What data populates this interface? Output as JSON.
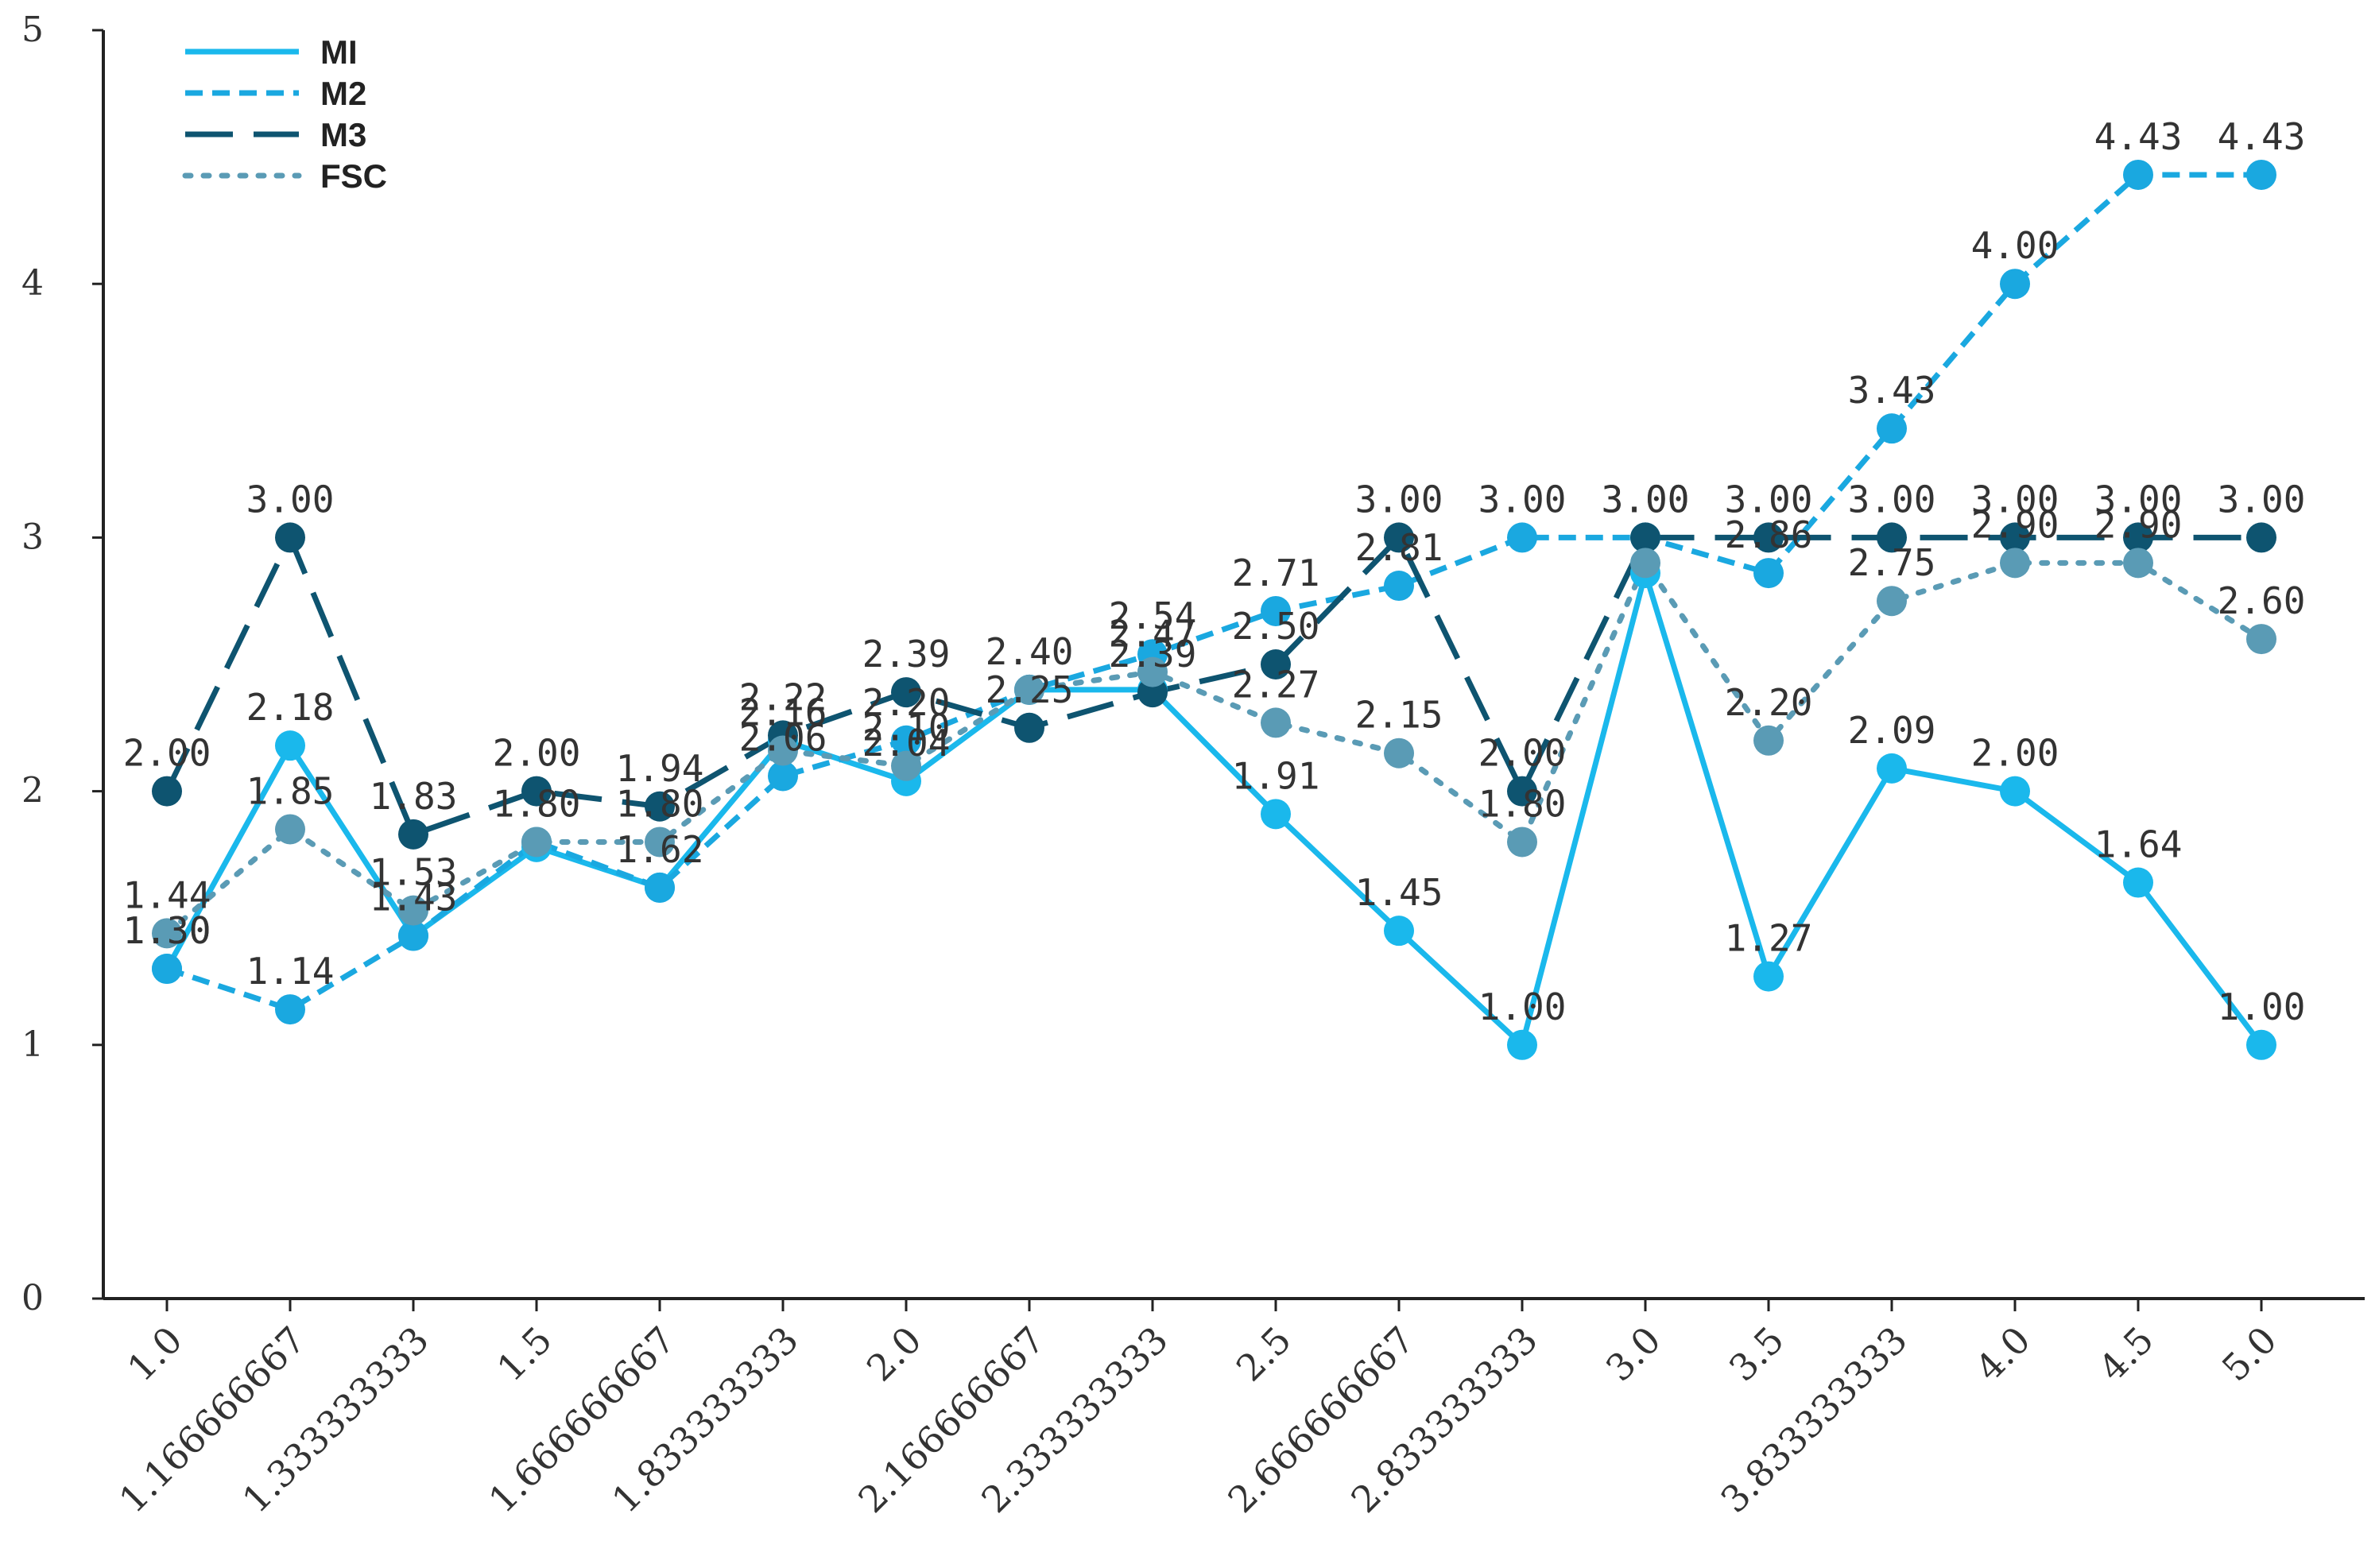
{
  "chart_data": {
    "type": "line",
    "title": "",
    "xlabel": "",
    "ylabel": "",
    "ylim": [
      0,
      5
    ],
    "yticks": [
      "0",
      "1",
      "2",
      "3",
      "4",
      "5"
    ],
    "categories": [
      "1.0",
      "1.166666667",
      "1.333333333",
      "1.5",
      "1.666666667",
      "1.833333333",
      "2.0",
      "2.166666667",
      "2.333333333",
      "2.5",
      "2.666666667",
      "2.833333333",
      "3.0",
      "3.5",
      "3.833333333",
      "4.0",
      "4.5",
      "5.0"
    ],
    "legend_position": "top-left",
    "series": [
      {
        "name": "MI",
        "color": "#1ab8ec",
        "dash": "solid",
        "values": [
          1.3,
          2.18,
          1.43,
          1.78,
          1.62,
          2.2,
          2.04,
          2.4,
          2.4,
          1.91,
          1.45,
          1.0,
          2.86,
          1.27,
          2.09,
          2.0,
          1.64,
          1.0
        ],
        "labels": [
          "1.30",
          "2.18",
          "1.43",
          "",
          "1.62",
          "",
          "2.04",
          "2.40",
          "",
          "1.91",
          "1.45",
          "1.00",
          "",
          "1.27",
          "2.09",
          "2.00",
          "1.64",
          "1.00"
        ]
      },
      {
        "name": "M2",
        "color": "#1aa8e0",
        "dash": "dash",
        "values": [
          1.3,
          1.14,
          1.43,
          1.8,
          1.62,
          2.06,
          2.2,
          2.4,
          2.54,
          2.71,
          2.81,
          3.0,
          3.0,
          2.86,
          3.43,
          4.0,
          4.43,
          4.43
        ],
        "labels": [
          "1.30",
          "1.14",
          "",
          "1.80",
          "",
          "2.06",
          "2.20",
          "",
          "2.54",
          "2.71",
          "2.81",
          "3.00",
          "3.00",
          "2.86",
          "3.43",
          "4.00",
          "4.43",
          "4.43"
        ]
      },
      {
        "name": "M3",
        "color": "#0e5470",
        "dash": "longdash",
        "values": [
          2.0,
          3.0,
          1.83,
          2.0,
          1.94,
          2.22,
          2.39,
          2.25,
          2.39,
          2.5,
          3.0,
          2.0,
          3.0,
          3.0,
          3.0,
          3.0,
          3.0,
          3.0
        ],
        "labels": [
          "2.00",
          "3.00",
          "1.83",
          "2.00",
          "1.94",
          "2.22",
          "2.39",
          "2.25",
          "2.39",
          "2.50",
          "3.00",
          "2.00",
          "3.00",
          "3.00",
          "3.00",
          "3.00",
          "3.00",
          "3.00"
        ]
      },
      {
        "name": "FSC",
        "color": "#5a9bb5",
        "dash": "dot",
        "values": [
          1.44,
          1.85,
          1.53,
          1.8,
          1.8,
          2.16,
          2.1,
          2.4,
          2.47,
          2.27,
          2.15,
          1.8,
          2.9,
          2.2,
          2.75,
          2.9,
          2.9,
          2.6
        ],
        "labels": [
          "1.44",
          "1.85",
          "1.53",
          "",
          "1.80",
          "2.16",
          "2.10",
          "",
          "2.47",
          "2.27",
          "2.15",
          "1.80",
          "",
          "2.20",
          "2.75",
          "2.90",
          "2.90",
          "2.60"
        ]
      }
    ]
  }
}
